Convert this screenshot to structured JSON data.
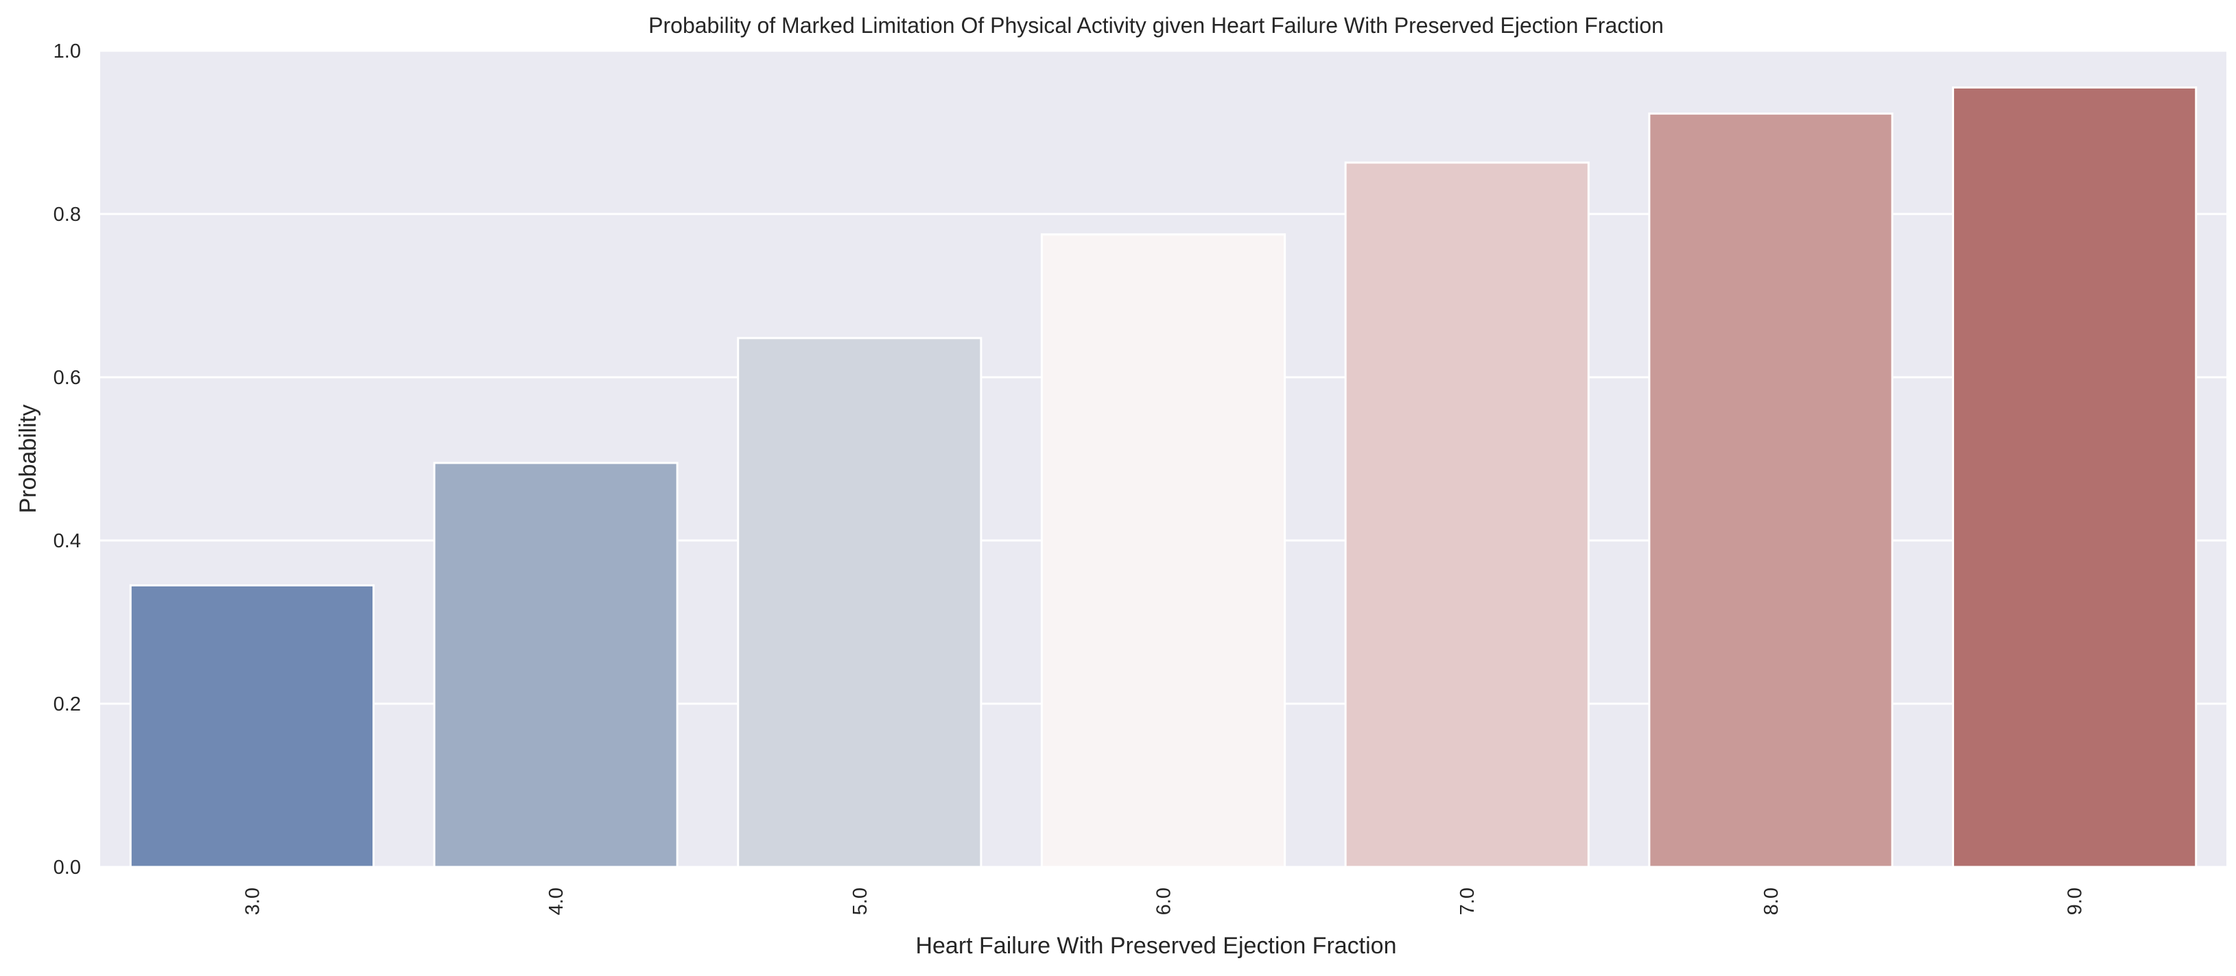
{
  "chart_data": {
    "type": "bar",
    "title": "Probability of Marked Limitation Of Physical Activity given Heart Failure With Preserved Ejection Fraction",
    "xlabel": "Heart Failure With Preserved Ejection Fraction",
    "ylabel": "Probability",
    "categories": [
      "3.0",
      "4.0",
      "5.0",
      "6.0",
      "7.0",
      "8.0",
      "9.0"
    ],
    "values": [
      0.345,
      0.495,
      0.648,
      0.775,
      0.863,
      0.923,
      0.955
    ],
    "ylim": [
      0,
      1.0
    ],
    "yticks": [
      "0.0",
      "0.2",
      "0.4",
      "0.6",
      "0.8",
      "1.0"
    ],
    "grid": true,
    "colors": [
      "#7089b3",
      "#9eadc4",
      "#d0d5de",
      "#f9f4f4",
      "#e4caca",
      "#c99a98",
      "#b2706e"
    ],
    "background": "#eaeaf2"
  }
}
